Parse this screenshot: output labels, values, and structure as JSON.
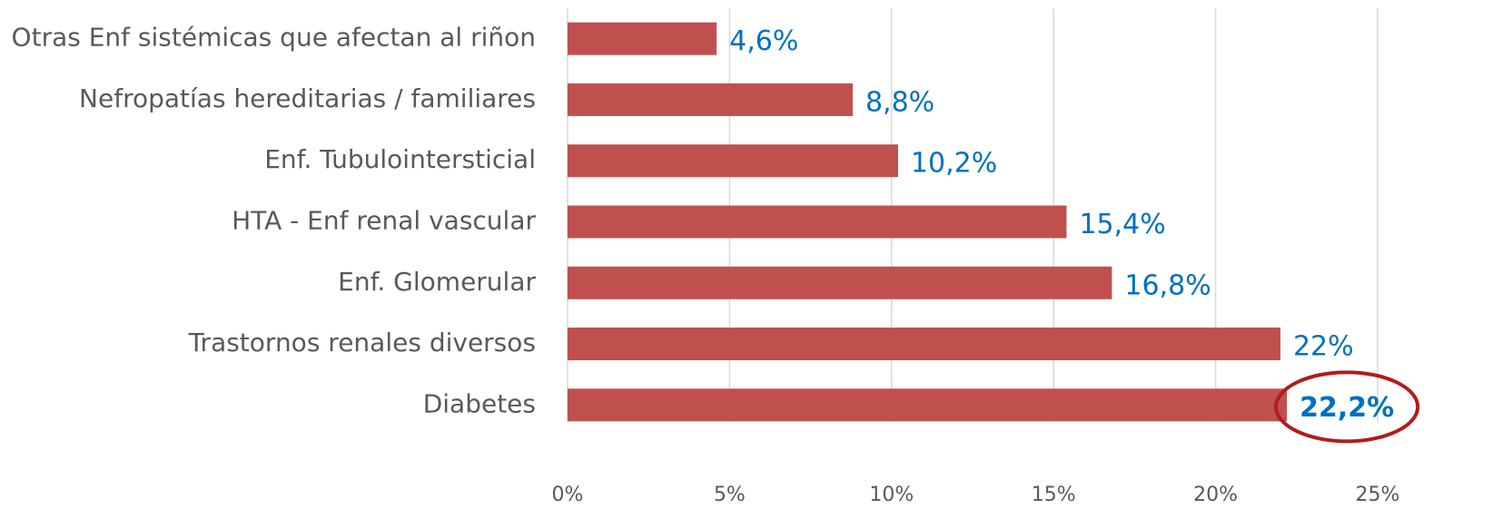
{
  "chart_data": {
    "type": "barh",
    "categories": [
      "Otras Enf sistémicas que afectan al riñon",
      "Nefropatías hereditarias / familiares",
      "Enf. Tubulointersticial",
      "HTA - Enf renal vascular",
      "Enf. Glomerular",
      "Trastornos renales diversos",
      "Diabetes"
    ],
    "values": [
      4.6,
      8.8,
      10.2,
      15.4,
      16.8,
      22,
      22.2
    ],
    "value_labels": [
      "4,6%",
      "8,8%",
      "10,2%",
      "15,4%",
      "16,8%",
      "22%",
      "22,2%"
    ],
    "color": "#c0504d",
    "label_color": "#0070c0",
    "highlight": 6,
    "highlight_color": "#b01c1c",
    "xlim": [
      0,
      25
    ],
    "xticks": [
      {
        "value": 0,
        "label": "0%"
      },
      {
        "value": 5,
        "label": "5%"
      },
      {
        "value": 10,
        "label": "10%"
      },
      {
        "value": 15,
        "label": "15%"
      },
      {
        "value": 20,
        "label": "20%"
      },
      {
        "value": 25,
        "label": "25%"
      }
    ],
    "grid": true
  }
}
